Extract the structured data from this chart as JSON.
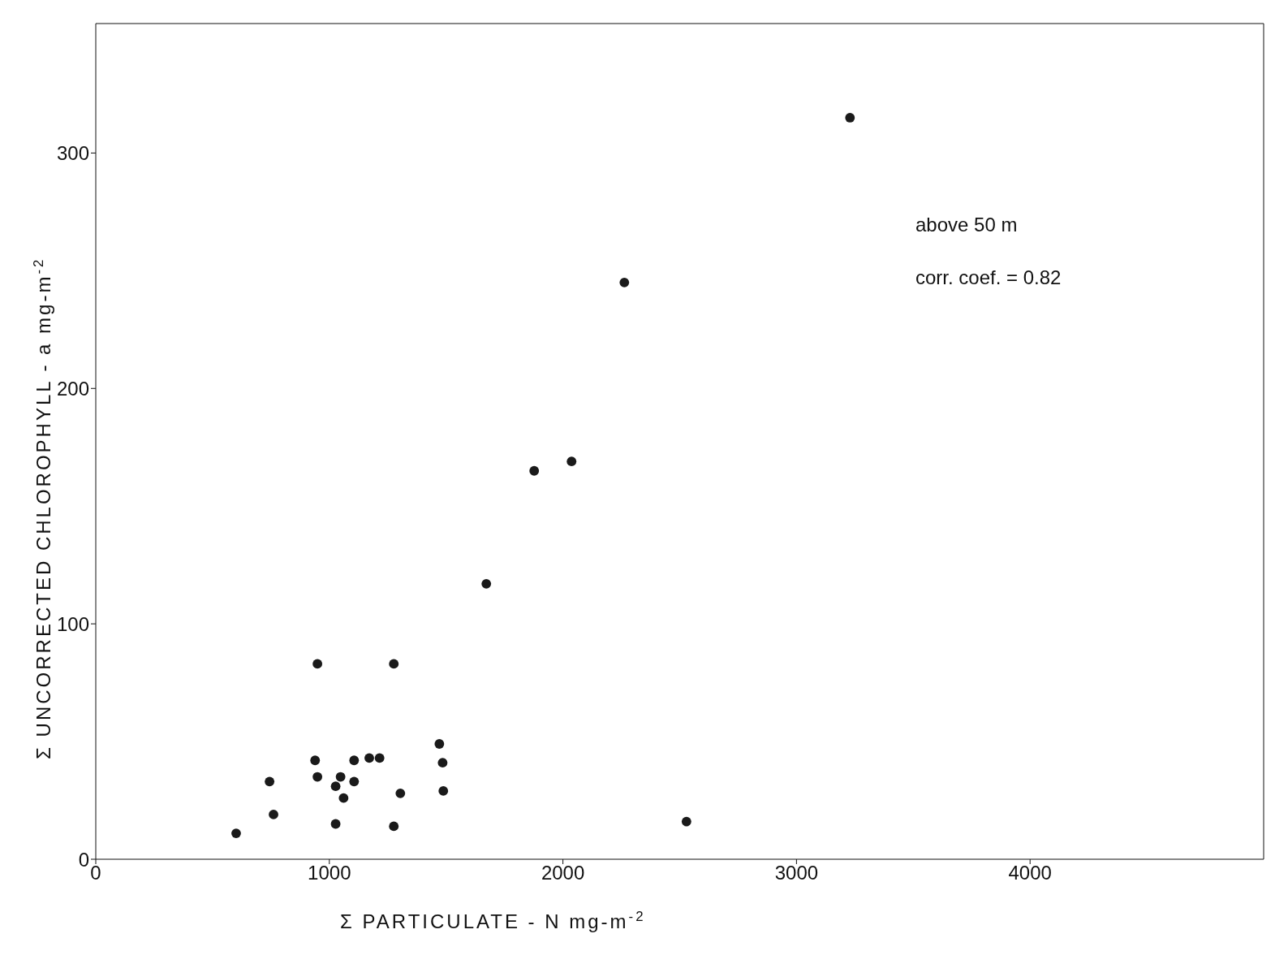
{
  "chart_data": {
    "type": "scatter",
    "xlabel": "Σ PARTICULATE - N  mg-m$^{-2}$",
    "ylabel": "Σ UNCORRECTED  CHLOROPHYLL - a   mg-m$^{-2}$",
    "annotations": [
      "above  50 m",
      "corr. coef. = 0.82"
    ],
    "x": [
      3229,
      2263,
      2037,
      1877,
      1672,
      949,
      1276,
      1471,
      1485,
      1488,
      1304,
      939,
      949,
      744,
      761,
      601,
      1027,
      1048,
      1061,
      1106,
      1106,
      1171,
      1215,
      1027,
      1276,
      2529
    ],
    "values": [
      315,
      245,
      169,
      165,
      117,
      83,
      83,
      49,
      41,
      29,
      28,
      42,
      35,
      33,
      19,
      11,
      31,
      35,
      26,
      42,
      33,
      43,
      43,
      15,
      14,
      16
    ],
    "color": "#1a1a1a",
    "marker": "circle",
    "xlim": [
      0,
      5000
    ],
    "xticks": [
      0,
      1000,
      2000,
      3000,
      4000
    ],
    "ylim": [
      0,
      355
    ],
    "yticks": [
      0,
      100,
      200,
      300
    ],
    "grid": false,
    "legend": false
  }
}
